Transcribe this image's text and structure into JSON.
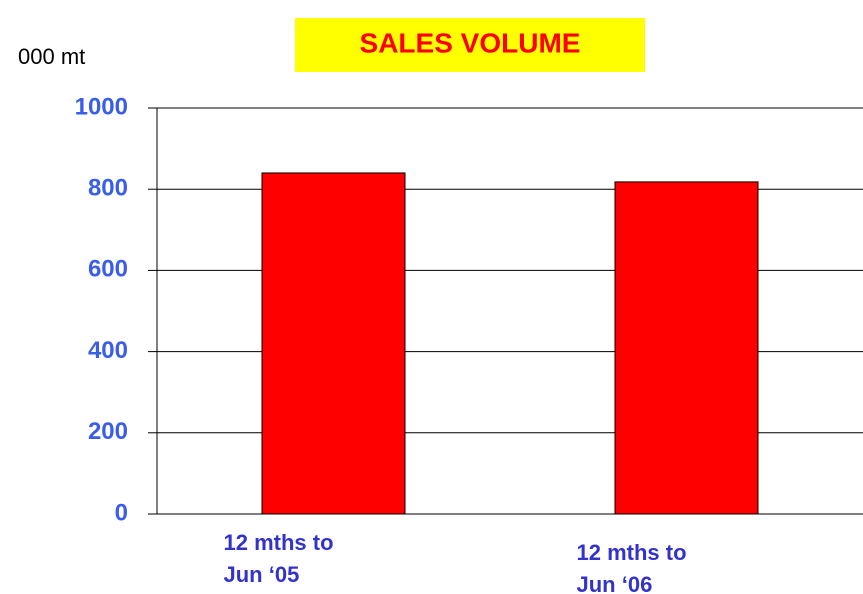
{
  "chart_data": {
    "type": "bar",
    "title": "SALES VOLUME",
    "y_label": "000 mt",
    "categories": [
      "12 mths to\nJun ‘05",
      "12 mths to\nJun ‘06"
    ],
    "values": [
      840,
      818
    ],
    "color": "#ff0000",
    "ylim": [
      0,
      1000
    ],
    "yticks": [
      0,
      200,
      400,
      600,
      800,
      1000
    ],
    "grid": true
  }
}
